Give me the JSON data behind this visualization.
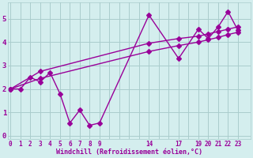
{
  "xlabel": "Windchill (Refroidissement éolien,°C)",
  "bg_color": "#d4eeee",
  "line_color": "#990099",
  "grid_color": "#aacccc",
  "text_color": "#990099",
  "xtick_labels": [
    "0",
    "1",
    "2",
    "3",
    "4",
    "5",
    "6",
    "7",
    "8",
    "9",
    "",
    "",
    "",
    "",
    "14",
    "",
    "",
    "17",
    "",
    "19",
    "20",
    "21",
    "22",
    "23"
  ],
  "xtick_positions": [
    0,
    1,
    2,
    3,
    4,
    5,
    6,
    7,
    8,
    9,
    10,
    11,
    12,
    13,
    14,
    15,
    16,
    17,
    18,
    19,
    20,
    21,
    22,
    23
  ],
  "yticks": [
    0,
    1,
    2,
    3,
    4,
    5
  ],
  "xlim": [
    -0.3,
    24.3
  ],
  "ylim": [
    -0.15,
    5.7
  ],
  "line1_x_pos": [
    0,
    1,
    2,
    3,
    4,
    5,
    6,
    7,
    8,
    9,
    14,
    17,
    19,
    20,
    21,
    22,
    23
  ],
  "line1_x_val": [
    0,
    1,
    2,
    3,
    4,
    5,
    6,
    7,
    8,
    9,
    14,
    17,
    19,
    20,
    21,
    22,
    23
  ],
  "line1_y": [
    2.0,
    2.0,
    2.5,
    2.3,
    2.7,
    1.8,
    0.55,
    1.1,
    0.45,
    0.55,
    5.15,
    3.3,
    4.55,
    4.15,
    4.65,
    5.3,
    4.5
  ],
  "line2_x_val": [
    0,
    3,
    14,
    17,
    19,
    20,
    21,
    22,
    23
  ],
  "line2_y": [
    2.0,
    2.75,
    3.95,
    4.15,
    4.25,
    4.35,
    4.45,
    4.55,
    4.65
  ],
  "line3_x_val": [
    0,
    3,
    14,
    17,
    19,
    20,
    21,
    22,
    23
  ],
  "line3_y": [
    2.0,
    2.45,
    3.6,
    3.85,
    4.0,
    4.1,
    4.2,
    4.32,
    4.42
  ],
  "markersize": 3,
  "linewidth": 1.0
}
